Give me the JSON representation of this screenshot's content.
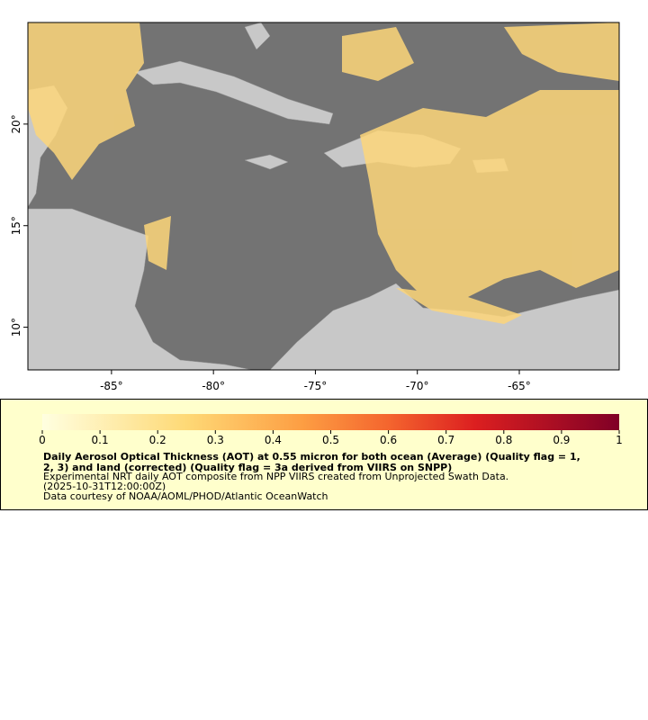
{
  "map": {
    "xlim": [
      -89.1,
      -60.1
    ],
    "ylim": [
      7.9,
      25
    ],
    "xticks": [
      {
        "value": -85,
        "label": "-85°"
      },
      {
        "value": -80,
        "label": "-80°"
      },
      {
        "value": -75,
        "label": "-75°"
      },
      {
        "value": -70,
        "label": "-70°"
      },
      {
        "value": -65,
        "label": "-65°"
      }
    ],
    "yticks": [
      {
        "value": 10,
        "label": "10°"
      },
      {
        "value": 15,
        "label": "15°"
      },
      {
        "value": 20,
        "label": "20°"
      }
    ]
  },
  "colorbar": {
    "lim": [
      0,
      1
    ],
    "ticks": [
      0,
      0.1,
      0.2,
      0.3,
      0.4,
      0.5,
      0.6,
      0.7,
      0.8,
      0.9,
      1
    ]
  },
  "legend": {
    "title_lines": [
      "Daily Aerosol Optical Thickness (AOT) at 0.55 micron for both ocean (Average) (Quality flag = 1,",
      "2, 3) and land (corrected) (Quality flag = 3a derived from VIIRS on SNPP)"
    ],
    "lines": [
      "Experimental NRT daily AOT composite from NPP VIIRS created from Unprojected Swath Data.",
      "(2025-10-31T12:00:00Z)",
      "Data courtesy of NOAA/AOML/PHOD/Atlantic OceanWatch"
    ]
  }
}
